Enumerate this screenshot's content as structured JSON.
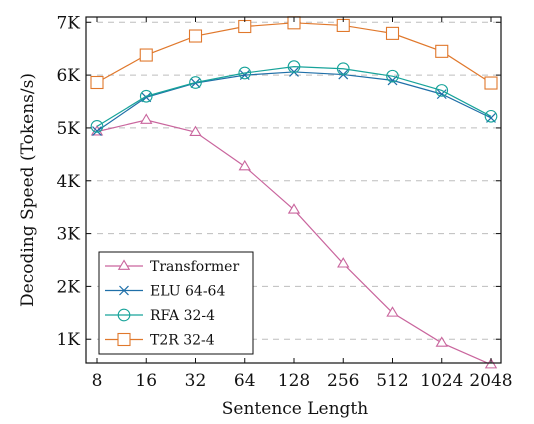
{
  "chart_data": {
    "type": "line",
    "title": "",
    "xlabel": "Sentence Length",
    "ylabel": "Decoding Speed (Tokens/s)",
    "x_scale": "log2",
    "categories": [
      "8",
      "16",
      "32",
      "64",
      "128",
      "256",
      "512",
      "1024",
      "2048"
    ],
    "x": [
      8,
      16,
      32,
      64,
      128,
      256,
      512,
      1024,
      2048
    ],
    "ylim": [
      550,
      7100
    ],
    "yticks": [
      1000,
      2000,
      3000,
      4000,
      5000,
      6000,
      7000
    ],
    "ytick_labels": [
      "1K",
      "2K",
      "3K",
      "4K",
      "5K",
      "6K",
      "7K"
    ],
    "grid": "horizontal dashed",
    "legend_position": "lower-left",
    "series": [
      {
        "name": "Transformer",
        "color": "#c9659d",
        "marker": "triangle",
        "values": [
          4930,
          5150,
          4920,
          4270,
          3450,
          2430,
          1500,
          930,
          520
        ]
      },
      {
        "name": "ELU 64-64",
        "color": "#1f6fa8",
        "marker": "x",
        "values": [
          4940,
          5580,
          5850,
          6000,
          6060,
          6010,
          5900,
          5640,
          5190
        ]
      },
      {
        "name": "RFA 32-4",
        "color": "#17a39a",
        "marker": "circle",
        "values": [
          5030,
          5600,
          5860,
          6040,
          6160,
          6120,
          5980,
          5710,
          5220
        ]
      },
      {
        "name": "T2R 32-4",
        "color": "#e0782c",
        "marker": "square",
        "values": [
          5860,
          6380,
          6740,
          6920,
          6990,
          6940,
          6790,
          6450,
          5850
        ]
      }
    ]
  }
}
